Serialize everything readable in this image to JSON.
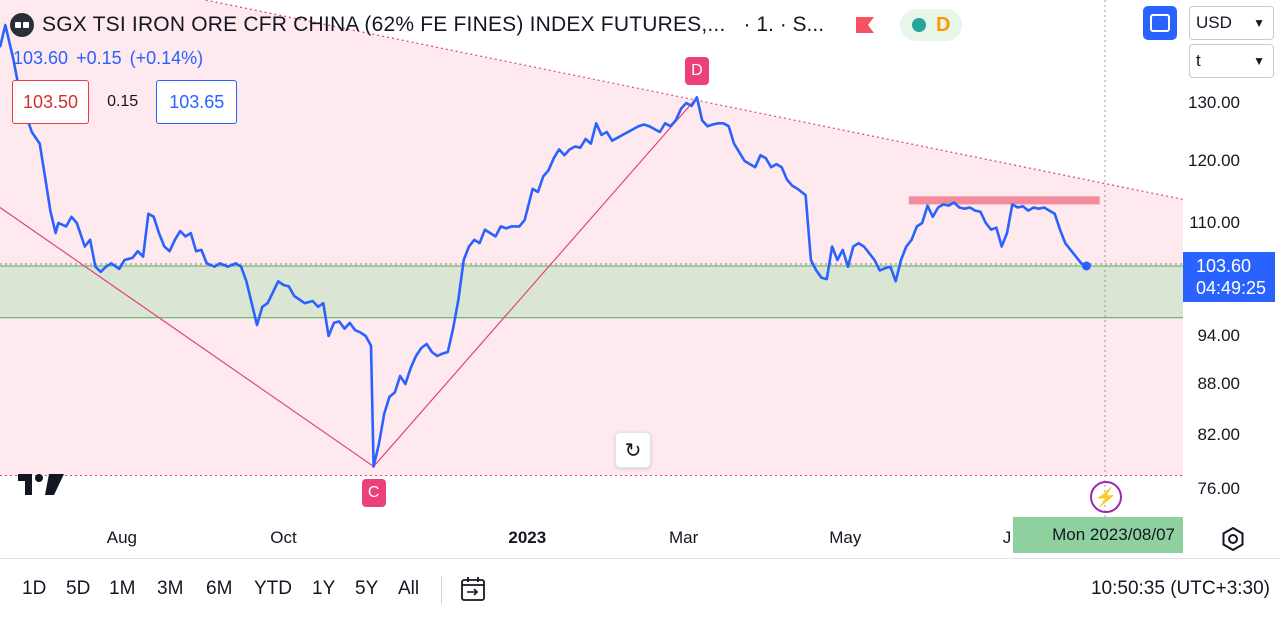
{
  "header": {
    "title": "SGX TSI IRON ORE CFR CHINA (62% FE FINES) INDEX FUTURES,...",
    "interval_exchange": "· 1. · S...",
    "status_letter": "D"
  },
  "price_line": {
    "last": "103.60",
    "change": "+0.15",
    "change_pct": "(+0.14%)"
  },
  "quote": {
    "bid": "103.50",
    "spread": "0.15",
    "ask": "103.65"
  },
  "toolbar_right": {
    "currency": "USD",
    "unit": "t"
  },
  "price_tag": {
    "price": "103.60",
    "countdown": "04:49:25"
  },
  "crosshair_date": "Mon 2023/08/07",
  "bottom_bar": {
    "ranges": [
      "1D",
      "5D",
      "1M",
      "3M",
      "6M",
      "YTD",
      "1Y",
      "5Y",
      "All"
    ],
    "clock": "10:50:35 (UTC+3:30)"
  },
  "colors": {
    "line": "#2962ff",
    "zone_pink": "#fde9ee",
    "zone_green": "#dbe5d4",
    "pattern_line": "#e0457b",
    "resistance": "#f28b9a",
    "accent": "#2962ff"
  },
  "chart_data": {
    "type": "line",
    "x_range": [
      "2022-06-16",
      "2023-08-07"
    ],
    "y_range": [
      75,
      137
    ],
    "y_ticks": [
      "130.00",
      "120.00",
      "110.00",
      "103.60",
      "94.00",
      "88.00",
      "82.00",
      "76.00"
    ],
    "x_ticks": [
      {
        "date": "2022-08-01",
        "label": "Aug",
        "bold": false
      },
      {
        "date": "2022-10-01",
        "label": "Oct",
        "bold": false
      },
      {
        "date": "2023-01-01",
        "label": "2023",
        "bold": true
      },
      {
        "date": "2023-03-01",
        "label": "Mar",
        "bold": false
      },
      {
        "date": "2023-05-01",
        "label": "May",
        "bold": false
      },
      {
        "date": "2023-07-01",
        "label": "J",
        "bold": false
      }
    ],
    "series": [
      {
        "points": [
          [
            "2022-06-16",
            135.0
          ],
          [
            "2022-06-18",
            137.0
          ],
          [
            "2022-06-21",
            134.0
          ],
          [
            "2022-06-23",
            131.5
          ],
          [
            "2022-06-25",
            129.0
          ],
          [
            "2022-06-28",
            125.0
          ],
          [
            "2022-07-01",
            123.0
          ],
          [
            "2022-07-03",
            117.5
          ],
          [
            "2022-07-05",
            112.0
          ],
          [
            "2022-07-07",
            108.5
          ],
          [
            "2022-07-08",
            110.0
          ],
          [
            "2022-07-11",
            109.5
          ],
          [
            "2022-07-13",
            111.0
          ],
          [
            "2022-07-15",
            110.0
          ],
          [
            "2022-07-18",
            106.5
          ],
          [
            "2022-07-20",
            107.5
          ],
          [
            "2022-07-22",
            103.5
          ],
          [
            "2022-07-24",
            102.8
          ],
          [
            "2022-07-26",
            103.5
          ],
          [
            "2022-07-28",
            104.0
          ],
          [
            "2022-07-31",
            103.2
          ],
          [
            "2022-08-02",
            104.5
          ],
          [
            "2022-08-05",
            104.8
          ],
          [
            "2022-08-07",
            105.8
          ],
          [
            "2022-08-09",
            105.0
          ],
          [
            "2022-08-11",
            111.5
          ],
          [
            "2022-08-13",
            111.0
          ],
          [
            "2022-08-15",
            108.5
          ],
          [
            "2022-08-17",
            106.5
          ],
          [
            "2022-08-19",
            105.8
          ],
          [
            "2022-08-21",
            107.5
          ],
          [
            "2022-08-23",
            108.8
          ],
          [
            "2022-08-25",
            108.0
          ],
          [
            "2022-08-27",
            108.5
          ],
          [
            "2022-08-29",
            105.8
          ],
          [
            "2022-08-31",
            106.0
          ],
          [
            "2022-09-02",
            104.0
          ],
          [
            "2022-09-05",
            103.5
          ],
          [
            "2022-09-07",
            104.0
          ],
          [
            "2022-09-10",
            103.5
          ],
          [
            "2022-09-13",
            104.0
          ],
          [
            "2022-09-15",
            103.5
          ],
          [
            "2022-09-17",
            101.5
          ],
          [
            "2022-09-19",
            98.5
          ],
          [
            "2022-09-21",
            95.5
          ],
          [
            "2022-09-23",
            98.0
          ],
          [
            "2022-09-25",
            98.5
          ],
          [
            "2022-09-27",
            100.0
          ],
          [
            "2022-09-29",
            101.5
          ],
          [
            "2022-10-01",
            101.0
          ],
          [
            "2022-10-03",
            100.8
          ],
          [
            "2022-10-05",
            99.5
          ],
          [
            "2022-10-07",
            99.0
          ],
          [
            "2022-10-09",
            98.5
          ],
          [
            "2022-10-12",
            98.8
          ],
          [
            "2022-10-14",
            98.0
          ],
          [
            "2022-10-16",
            98.5
          ],
          [
            "2022-10-18",
            94.0
          ],
          [
            "2022-10-20",
            95.8
          ],
          [
            "2022-10-22",
            96.0
          ],
          [
            "2022-10-24",
            95.0
          ],
          [
            "2022-10-26",
            95.8
          ],
          [
            "2022-10-28",
            94.8
          ],
          [
            "2022-10-30",
            94.5
          ],
          [
            "2022-11-01",
            94.0
          ],
          [
            "2022-11-03",
            92.8
          ],
          [
            "2022-11-04",
            78.5
          ],
          [
            "2022-11-06",
            81.0
          ],
          [
            "2022-11-08",
            84.5
          ],
          [
            "2022-11-10",
            86.5
          ],
          [
            "2022-11-12",
            87.0
          ],
          [
            "2022-11-14",
            89.0
          ],
          [
            "2022-11-16",
            88.0
          ],
          [
            "2022-11-18",
            90.0
          ],
          [
            "2022-11-20",
            91.5
          ],
          [
            "2022-11-22",
            92.5
          ],
          [
            "2022-11-24",
            93.0
          ],
          [
            "2022-11-26",
            92.0
          ],
          [
            "2022-11-28",
            91.5
          ],
          [
            "2022-11-30",
            91.8
          ],
          [
            "2022-12-02",
            92.0
          ],
          [
            "2022-12-04",
            95.0
          ],
          [
            "2022-12-06",
            99.0
          ],
          [
            "2022-12-08",
            104.5
          ],
          [
            "2022-12-10",
            106.5
          ],
          [
            "2022-12-12",
            107.5
          ],
          [
            "2022-12-14",
            107.0
          ],
          [
            "2022-12-16",
            109.0
          ],
          [
            "2022-12-18",
            108.5
          ],
          [
            "2022-12-20",
            108.0
          ],
          [
            "2022-12-22",
            109.5
          ],
          [
            "2022-12-24",
            109.2
          ],
          [
            "2022-12-26",
            109.5
          ],
          [
            "2022-12-29",
            109.5
          ],
          [
            "2022-12-31",
            110.5
          ],
          [
            "2023-01-03",
            115.5
          ],
          [
            "2023-01-05",
            115.0
          ],
          [
            "2023-01-07",
            117.5
          ],
          [
            "2023-01-09",
            118.5
          ],
          [
            "2023-01-11",
            120.5
          ],
          [
            "2023-01-13",
            122.0
          ],
          [
            "2023-01-15",
            121.0
          ],
          [
            "2023-01-17",
            122.0
          ],
          [
            "2023-01-19",
            122.5
          ],
          [
            "2023-01-21",
            122.3
          ],
          [
            "2023-01-23",
            123.8
          ],
          [
            "2023-01-25",
            123.0
          ],
          [
            "2023-01-27",
            126.5
          ],
          [
            "2023-01-29",
            124.5
          ],
          [
            "2023-01-31",
            125.0
          ],
          [
            "2023-02-02",
            123.5
          ],
          [
            "2023-02-04",
            124.0
          ],
          [
            "2023-02-06",
            124.5
          ],
          [
            "2023-02-08",
            125.0
          ],
          [
            "2023-02-10",
            125.5
          ],
          [
            "2023-02-12",
            126.0
          ],
          [
            "2023-02-14",
            126.3
          ],
          [
            "2023-02-16",
            126.0
          ],
          [
            "2023-02-18",
            125.5
          ],
          [
            "2023-02-20",
            125.0
          ],
          [
            "2023-02-22",
            126.5
          ],
          [
            "2023-02-24",
            126.0
          ],
          [
            "2023-02-26",
            127.0
          ],
          [
            "2023-02-28",
            129.0
          ],
          [
            "2023-03-02",
            130.0
          ],
          [
            "2023-03-04",
            129.5
          ],
          [
            "2023-03-06",
            130.5
          ],
          [
            "2023-03-08",
            127.0
          ],
          [
            "2023-03-10",
            126.0
          ],
          [
            "2023-03-12",
            126.3
          ],
          [
            "2023-03-14",
            126.5
          ],
          [
            "2023-03-16",
            126.5
          ],
          [
            "2023-03-18",
            126.0
          ],
          [
            "2023-03-20",
            123.0
          ],
          [
            "2023-03-22",
            121.5
          ],
          [
            "2023-03-24",
            120.0
          ],
          [
            "2023-03-26",
            119.5
          ],
          [
            "2023-03-28",
            119.0
          ],
          [
            "2023-03-30",
            121.0
          ],
          [
            "2023-04-01",
            120.5
          ],
          [
            "2023-04-03",
            119.0
          ],
          [
            "2023-04-05",
            119.5
          ],
          [
            "2023-04-07",
            119.0
          ],
          [
            "2023-04-09",
            117.0
          ],
          [
            "2023-04-11",
            116.0
          ],
          [
            "2023-04-13",
            115.5
          ],
          [
            "2023-04-16",
            114.5
          ],
          [
            "2023-04-18",
            104.5
          ],
          [
            "2023-04-20",
            103.0
          ],
          [
            "2023-04-22",
            102.0
          ],
          [
            "2023-04-24",
            101.8
          ],
          [
            "2023-04-26",
            106.5
          ],
          [
            "2023-04-28",
            104.5
          ],
          [
            "2023-04-30",
            106.0
          ],
          [
            "2023-05-02",
            103.5
          ],
          [
            "2023-05-04",
            106.5
          ],
          [
            "2023-05-06",
            107.0
          ],
          [
            "2023-05-08",
            106.5
          ],
          [
            "2023-05-10",
            105.5
          ],
          [
            "2023-05-12",
            104.5
          ],
          [
            "2023-05-14",
            103.0
          ],
          [
            "2023-05-16",
            103.3
          ],
          [
            "2023-05-18",
            103.5
          ],
          [
            "2023-05-20",
            101.5
          ],
          [
            "2023-05-22",
            104.5
          ],
          [
            "2023-05-24",
            106.5
          ],
          [
            "2023-05-26",
            107.5
          ],
          [
            "2023-05-28",
            109.5
          ],
          [
            "2023-05-30",
            110.0
          ],
          [
            "2023-06-01",
            112.8
          ],
          [
            "2023-06-03",
            111.0
          ],
          [
            "2023-06-05",
            112.5
          ],
          [
            "2023-06-07",
            113.0
          ],
          [
            "2023-06-09",
            112.8
          ],
          [
            "2023-06-11",
            113.3
          ],
          [
            "2023-06-13",
            112.5
          ],
          [
            "2023-06-15",
            112.3
          ],
          [
            "2023-06-17",
            112.5
          ],
          [
            "2023-06-19",
            112.0
          ],
          [
            "2023-06-21",
            111.8
          ],
          [
            "2023-06-23",
            110.0
          ],
          [
            "2023-06-25",
            109.0
          ],
          [
            "2023-06-27",
            109.3
          ],
          [
            "2023-06-29",
            106.5
          ],
          [
            "2023-07-01",
            108.5
          ],
          [
            "2023-07-03",
            113.0
          ],
          [
            "2023-07-05",
            112.5
          ],
          [
            "2023-07-07",
            112.7
          ],
          [
            "2023-07-09",
            112.0
          ],
          [
            "2023-07-11",
            112.5
          ],
          [
            "2023-07-13",
            112.3
          ],
          [
            "2023-07-15",
            112.5
          ],
          [
            "2023-07-17",
            112.0
          ],
          [
            "2023-07-19",
            111.5
          ],
          [
            "2023-07-21",
            109.0
          ],
          [
            "2023-07-23",
            107.0
          ],
          [
            "2023-07-25",
            106.0
          ],
          [
            "2023-07-27",
            105.0
          ],
          [
            "2023-07-29",
            104.0
          ],
          [
            "2023-07-31",
            103.6
          ]
        ]
      }
    ],
    "pattern_points": [
      {
        "label": "C",
        "date": "2022-11-04",
        "value": 78.5
      },
      {
        "label": "D",
        "date": "2023-03-06",
        "value": 130.5
      }
    ],
    "pattern_line_start": {
      "date": "2022-06-16",
      "value": 112.5
    },
    "pink_zone": {
      "from_date": "2022-06-16",
      "upper_start": 143.0,
      "upper_end": 113.8,
      "lower": 77.5
    },
    "green_zone": {
      "from_date": "2022-06-16",
      "high": 103.6,
      "low": 96.5
    },
    "resistance_zone": {
      "from_date": "2023-05-25",
      "to_date": "2023-08-05",
      "high": 114.3,
      "low": 113.0
    }
  }
}
